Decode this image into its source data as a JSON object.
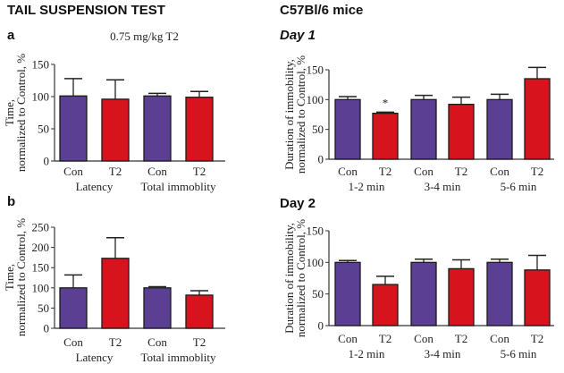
{
  "header": {
    "left_title": "TAIL SUSPENSION TEST",
    "right_title": "C57Bl/6 mice"
  },
  "colors": {
    "con": "#5a3f93",
    "t2": "#d7141e",
    "axis": "#333333"
  },
  "chart_data": [
    {
      "id": "a",
      "type": "bar",
      "panel_label": "a",
      "title": "0.75 mg/kg T2",
      "ylabel_lines": [
        "Time,",
        "normalized to Control, %"
      ],
      "ylim": [
        0,
        150
      ],
      "yticks": [
        0,
        50,
        100,
        150
      ],
      "categories": [
        "Con",
        "T2",
        "Con",
        "T2"
      ],
      "groups": [
        {
          "label": "Latency",
          "span": [
            0,
            1
          ]
        },
        {
          "label": "Total immoblity",
          "span": [
            2,
            3
          ]
        }
      ],
      "values": [
        101,
        96,
        101,
        99
      ],
      "errors": [
        27,
        30,
        4,
        9
      ],
      "series_of_bar": [
        "con",
        "t2",
        "con",
        "t2"
      ],
      "annotations": []
    },
    {
      "id": "b",
      "type": "bar",
      "panel_label": "b",
      "title": "",
      "ylabel_lines": [
        "Time,",
        "normalized to Control, %"
      ],
      "ylim": [
        0,
        250
      ],
      "yticks": [
        0,
        50,
        100,
        150,
        200,
        250
      ],
      "categories": [
        "Con",
        "T2",
        "Con",
        "T2"
      ],
      "groups": [
        {
          "label": "Latency",
          "span": [
            0,
            1
          ]
        },
        {
          "label": "Total immoblity",
          "span": [
            2,
            3
          ]
        }
      ],
      "values": [
        100,
        173,
        100,
        82
      ],
      "errors": [
        32,
        51,
        3,
        11
      ],
      "series_of_bar": [
        "con",
        "t2",
        "con",
        "t2"
      ],
      "annotations": []
    },
    {
      "id": "day1",
      "type": "bar",
      "panel_label": "Day 1",
      "title": "",
      "ylabel_lines": [
        "Duration of immobility,",
        "normalized to Control, %"
      ],
      "ylim": [
        0,
        150
      ],
      "yticks": [
        0,
        50,
        100,
        150
      ],
      "categories": [
        "Con",
        "T2",
        "Con",
        "T2",
        "Con",
        "T2"
      ],
      "groups": [
        {
          "label": "1-2 min",
          "span": [
            0,
            1
          ]
        },
        {
          "label": "3-4 min",
          "span": [
            2,
            3
          ]
        },
        {
          "label": "5-6 min",
          "span": [
            4,
            5
          ]
        }
      ],
      "values": [
        100,
        77,
        100,
        92,
        100,
        135
      ],
      "errors": [
        5,
        2,
        7,
        12,
        9,
        19
      ],
      "series_of_bar": [
        "con",
        "t2",
        "con",
        "t2",
        "con",
        "t2"
      ],
      "annotations": [
        {
          "bar": 1,
          "text": "*"
        }
      ]
    },
    {
      "id": "day2",
      "type": "bar",
      "panel_label": "Day 2",
      "title": "",
      "ylabel_lines": [
        "Duration of immobility,",
        "normalized to Control, %"
      ],
      "ylim": [
        0,
        150
      ],
      "yticks": [
        0,
        50,
        100,
        150
      ],
      "categories": [
        "Con",
        "T2",
        "Con",
        "T2",
        "Con",
        "T2"
      ],
      "groups": [
        {
          "label": "1-2 min",
          "span": [
            0,
            1
          ]
        },
        {
          "label": "3-4 min",
          "span": [
            2,
            3
          ]
        },
        {
          "label": "5-6 min",
          "span": [
            4,
            5
          ]
        }
      ],
      "values": [
        100,
        65,
        100,
        90,
        100,
        88
      ],
      "errors": [
        3,
        13,
        5,
        14,
        5,
        23
      ],
      "series_of_bar": [
        "con",
        "t2",
        "con",
        "t2",
        "con",
        "t2"
      ],
      "annotations": []
    }
  ]
}
